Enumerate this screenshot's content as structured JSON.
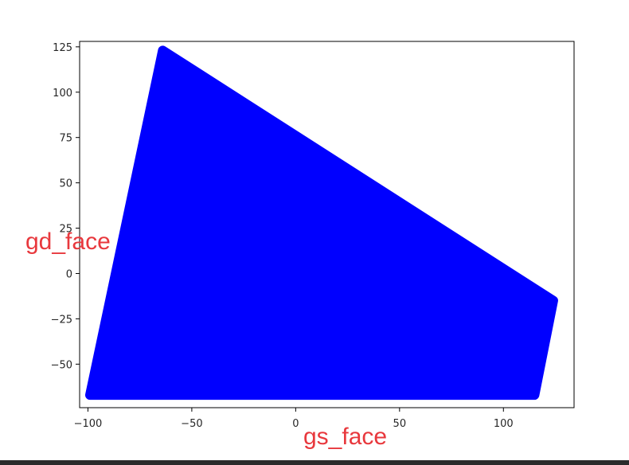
{
  "chart_data": {
    "type": "scatter",
    "title": "",
    "xlabel": "gs_face",
    "ylabel": "gd_face",
    "xlim": [
      -104,
      134
    ],
    "ylim": [
      -74,
      128
    ],
    "xticks": [
      -100,
      -50,
      0,
      50,
      100
    ],
    "yticks": [
      -50,
      -25,
      0,
      25,
      50,
      75,
      100,
      125
    ],
    "xtick_labels": [
      "−100",
      "−50",
      "0",
      "50",
      "100"
    ],
    "ytick_labels": [
      "−50",
      "−25",
      "0",
      "25",
      "50",
      "75",
      "100",
      "125"
    ],
    "grid": false,
    "legend": "none",
    "series": [
      {
        "color": "#0000ff",
        "marker": "dense filled circles forming a solid region",
        "outline_points": [
          {
            "x": -99,
            "y": -67
          },
          {
            "x": -64,
            "y": 123
          },
          {
            "x": 124,
            "y": -15
          },
          {
            "x": 115,
            "y": -67
          }
        ]
      }
    ]
  },
  "colors": {
    "points": "#0000ff",
    "label": "#e8383d",
    "axes": "#000000",
    "bottom_bar": "#2b2b2b"
  }
}
